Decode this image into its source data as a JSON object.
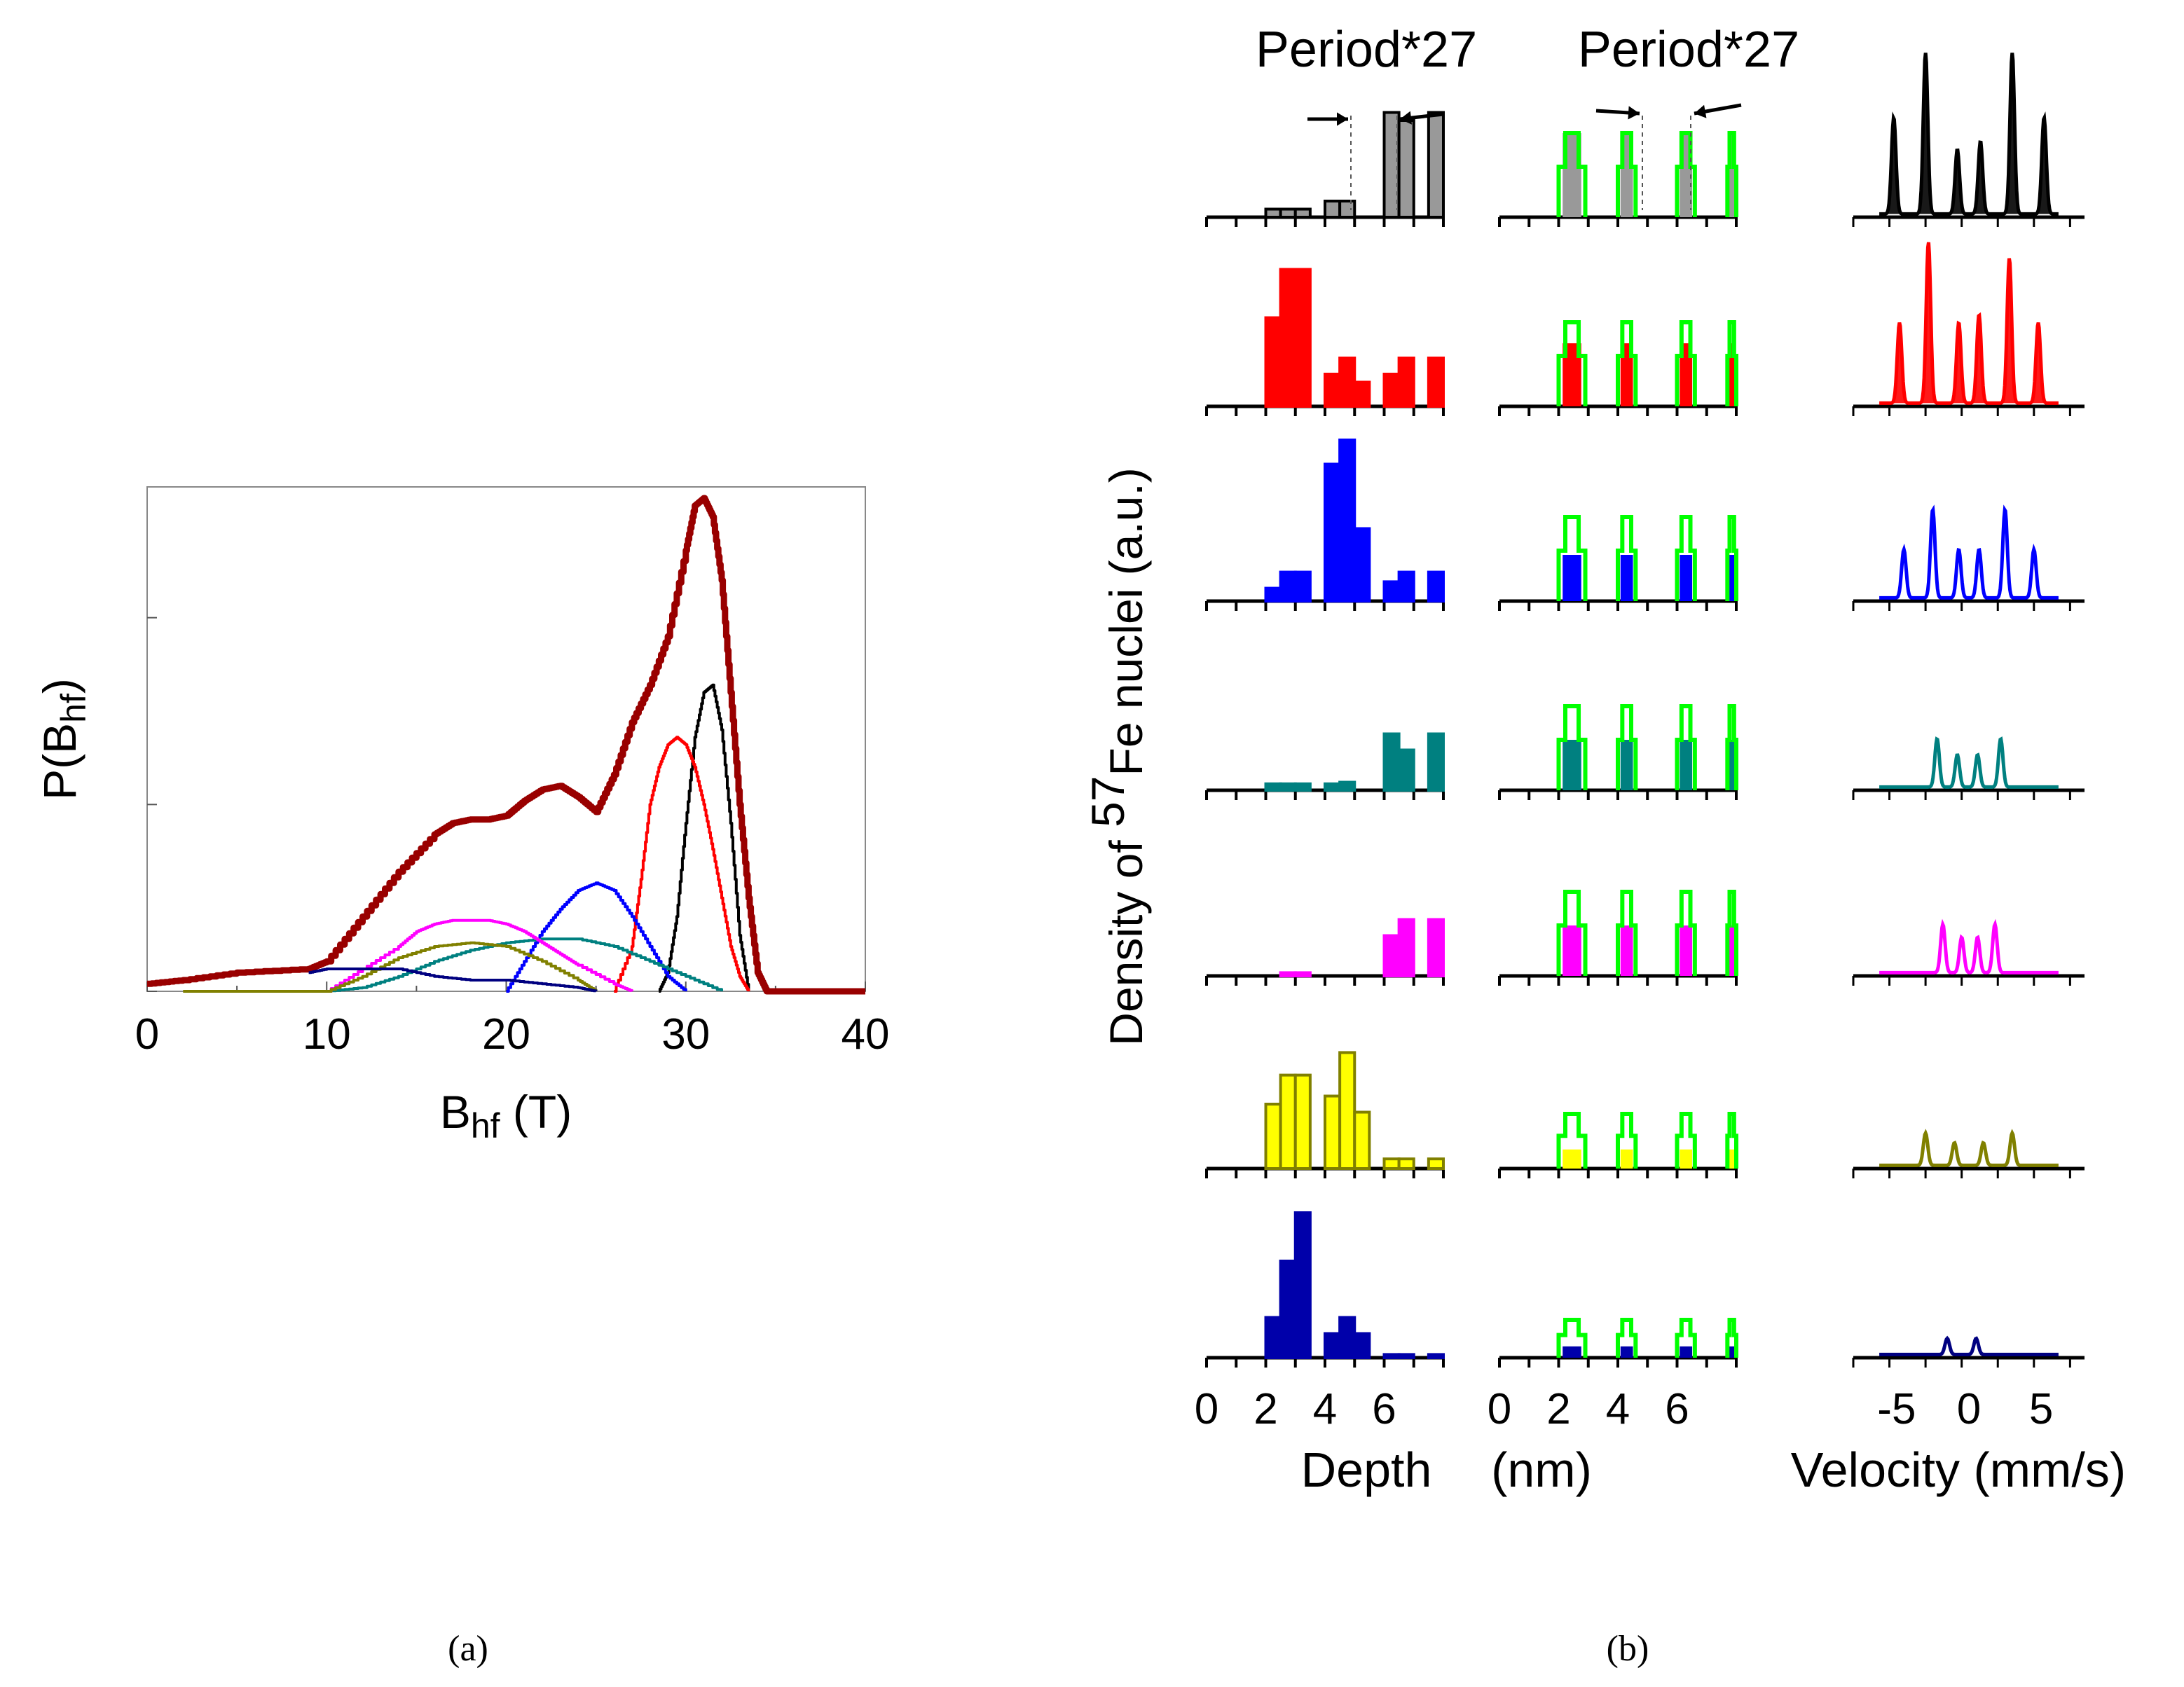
{
  "panel_a": {
    "caption": "(a)",
    "y_label": "P(B",
    "y_label_sub": "hf",
    "y_label_close": ")",
    "x_label": "B",
    "x_label_sub": "hf",
    "x_label_rest": " (T)"
  },
  "panel_b": {
    "caption": "(b)",
    "y_label_prefix": "Density of ",
    "y_label_sup": "57",
    "y_label_suffix": "Fe nuclei (a.u.)",
    "depth_label": "Depth",
    "depth_unit": "(nm)",
    "velocity_label": "Velocity (mm/s)",
    "period_left": "Period*27",
    "period_right": "Period*27"
  },
  "chart_data": [
    {
      "type": "line",
      "panel": "a",
      "xlabel": "Bhf (T)",
      "ylabel": "P(Bhf)",
      "xlim": [
        0,
        40
      ],
      "ylim": [
        0,
        1.35
      ],
      "xticks": [
        0,
        10,
        20,
        30,
        40
      ],
      "yticks": [
        0,
        0.5,
        1.0
      ],
      "series": [
        {
          "name": "total",
          "color": "#990000",
          "width": 9,
          "x": [
            0,
            2,
            5,
            9,
            10,
            12,
            14,
            16,
            17,
            18,
            19,
            20,
            21,
            22,
            23,
            24,
            25,
            26,
            27,
            28,
            29,
            30,
            30.5,
            31,
            31.5,
            32,
            32.5,
            33,
            33.5,
            34,
            34.5,
            40
          ],
          "y": [
            0.02,
            0.03,
            0.05,
            0.06,
            0.08,
            0.2,
            0.32,
            0.42,
            0.45,
            0.46,
            0.46,
            0.47,
            0.51,
            0.54,
            0.55,
            0.52,
            0.48,
            0.58,
            0.72,
            0.82,
            0.95,
            1.18,
            1.3,
            1.32,
            1.27,
            1.1,
            0.8,
            0.5,
            0.25,
            0.05,
            0.0,
            0.0
          ]
        },
        {
          "name": "black",
          "color": "#000000",
          "width": 4,
          "x": [
            28.5,
            29,
            29.5,
            30,
            30.5,
            31,
            31.5,
            32,
            32.5,
            33,
            33.5
          ],
          "y": [
            0.0,
            0.05,
            0.2,
            0.45,
            0.68,
            0.8,
            0.82,
            0.7,
            0.45,
            0.15,
            0.0
          ]
        },
        {
          "name": "red",
          "color": "#ff0000",
          "width": 4,
          "x": [
            26,
            27,
            27.5,
            28,
            28.5,
            29,
            29.5,
            30,
            30.5,
            31,
            31.5,
            32,
            32.5,
            33,
            33.5
          ],
          "y": [
            0.0,
            0.12,
            0.3,
            0.5,
            0.6,
            0.66,
            0.68,
            0.66,
            0.6,
            0.5,
            0.38,
            0.25,
            0.12,
            0.04,
            0.0
          ]
        },
        {
          "name": "blue",
          "color": "#0000ff",
          "width": 4,
          "x": [
            20,
            21,
            22,
            23,
            24,
            25,
            26,
            27,
            28,
            29,
            30
          ],
          "y": [
            0.0,
            0.08,
            0.16,
            0.22,
            0.27,
            0.29,
            0.27,
            0.2,
            0.12,
            0.04,
            0.0
          ]
        },
        {
          "name": "teal",
          "color": "#008080",
          "width": 4,
          "x": [
            10,
            12,
            14,
            16,
            18,
            20,
            22,
            24,
            26,
            28,
            30,
            32
          ],
          "y": [
            0.0,
            0.01,
            0.04,
            0.08,
            0.11,
            0.13,
            0.14,
            0.14,
            0.12,
            0.08,
            0.04,
            0.0
          ]
        },
        {
          "name": "magenta",
          "color": "#ff00ff",
          "width": 4,
          "x": [
            10,
            12,
            14,
            15,
            16,
            17,
            18,
            19,
            20,
            21,
            22,
            23,
            24,
            26,
            27
          ],
          "y": [
            0.0,
            0.06,
            0.12,
            0.16,
            0.18,
            0.19,
            0.19,
            0.19,
            0.18,
            0.16,
            0.13,
            0.1,
            0.07,
            0.02,
            0.0
          ]
        },
        {
          "name": "olive",
          "color": "#808000",
          "width": 4,
          "x": [
            2,
            6,
            10,
            12,
            14,
            16,
            18,
            20,
            22,
            24,
            25
          ],
          "y": [
            0.0,
            0.0,
            0.0,
            0.04,
            0.09,
            0.12,
            0.13,
            0.12,
            0.08,
            0.03,
            0.0
          ]
        },
        {
          "name": "navy",
          "color": "#000080",
          "width": 4,
          "x": [
            9,
            10,
            14,
            16,
            18,
            20,
            22,
            24,
            25
          ],
          "y": [
            0.05,
            0.06,
            0.06,
            0.04,
            0.03,
            0.03,
            0.02,
            0.01,
            0.0
          ]
        }
      ]
    },
    {
      "type": "bar",
      "panel": "b-depth",
      "xlabel": "Depth (nm)",
      "xticks": [
        0,
        2,
        4,
        6
      ],
      "xlim": [
        0,
        8
      ],
      "bin_width": 0.5,
      "bin_starts": [
        2,
        2.5,
        3,
        4,
        4.5,
        5,
        6,
        6.5,
        7.5
      ],
      "rows": [
        {
          "color": "#999999",
          "outline": "#000000",
          "heights": [
            0.05,
            0.05,
            0.05,
            0.1,
            0.1,
            0.0,
            0.65,
            0.6,
            0.65
          ]
        },
        {
          "color": "#ff0000",
          "outline": "#ff0000",
          "heights": [
            0.55,
            0.85,
            0.85,
            0.2,
            0.3,
            0.15,
            0.2,
            0.3,
            0.3
          ]
        },
        {
          "color": "#0000ff",
          "outline": "#0000ff",
          "heights": [
            0.08,
            0.18,
            0.18,
            0.85,
            1.0,
            0.45,
            0.12,
            0.18,
            0.18
          ]
        },
        {
          "color": "#008080",
          "outline": "#008080",
          "heights": [
            0.04,
            0.04,
            0.04,
            0.04,
            0.05,
            0.0,
            0.35,
            0.25,
            0.35
          ]
        },
        {
          "color": "#ff00ff",
          "outline": "#ff00ff",
          "heights": [
            0.0,
            0.02,
            0.02,
            0.0,
            0.0,
            0.0,
            0.25,
            0.35,
            0.35
          ]
        },
        {
          "color": "#ffff00",
          "outline": "#808000",
          "heights": [
            0.4,
            0.58,
            0.58,
            0.45,
            0.72,
            0.35,
            0.06,
            0.06,
            0.06
          ]
        },
        {
          "color": "#0000aa",
          "outline": "#0000aa",
          "heights": [
            0.25,
            0.6,
            0.9,
            0.15,
            0.25,
            0.15,
            0.02,
            0.02,
            0.02
          ]
        }
      ]
    },
    {
      "type": "bar",
      "panel": "b-period",
      "xlabel": "Depth (nm)",
      "xticks": [
        0,
        2,
        4,
        6
      ],
      "xlim": [
        0,
        8
      ],
      "envelope": {
        "color": "#00ff00",
        "starts": [
          2,
          4,
          6,
          7.7
        ],
        "widths": [
          0.9,
          0.6,
          0.6,
          0.3
        ]
      },
      "row_heights": [
        1.0,
        1.0,
        1.0,
        1.0,
        1.0,
        0.65,
        0.45
      ],
      "fill_fraction": [
        1.0,
        0.75,
        0.55,
        0.6,
        0.6,
        0.35,
        0.3
      ]
    },
    {
      "type": "line",
      "panel": "b-velocity",
      "xlabel": "Velocity (mm/s)",
      "xticks": [
        -5,
        0,
        5
      ],
      "xlim": [
        -8,
        8
      ],
      "rows": [
        {
          "color": "#000000",
          "peaks": [
            -5.2,
            -3.0,
            -0.8,
            0.8,
            3.0,
            5.2
          ],
          "heights": [
            0.6,
            1.0,
            0.4,
            0.45,
            1.0,
            0.6
          ]
        },
        {
          "color": "#ff0000",
          "peaks": [
            -4.8,
            -2.8,
            -0.7,
            0.7,
            2.8,
            4.8
          ],
          "heights": [
            0.5,
            1.0,
            0.5,
            0.55,
            0.9,
            0.5
          ]
        },
        {
          "color": "#0000ff",
          "peaks": [
            -4.5,
            -2.5,
            -0.7,
            0.7,
            2.5,
            4.5
          ],
          "heights": [
            0.3,
            0.55,
            0.3,
            0.3,
            0.55,
            0.3
          ]
        },
        {
          "color": "#008080",
          "peaks": [
            -2.2,
            -0.8,
            0.6,
            2.2
          ],
          "heights": [
            0.3,
            0.2,
            0.2,
            0.3
          ]
        },
        {
          "color": "#ff00ff",
          "peaks": [
            -1.8,
            -0.5,
            0.6,
            1.8
          ],
          "heights": [
            0.3,
            0.22,
            0.22,
            0.3
          ]
        },
        {
          "color": "#808000",
          "peaks": [
            -3,
            -1,
            1,
            3
          ],
          "heights": [
            0.2,
            0.14,
            0.14,
            0.2
          ]
        },
        {
          "color": "#000080",
          "peaks": [
            -1.5,
            0.5
          ],
          "heights": [
            0.1,
            0.1
          ]
        }
      ]
    }
  ]
}
